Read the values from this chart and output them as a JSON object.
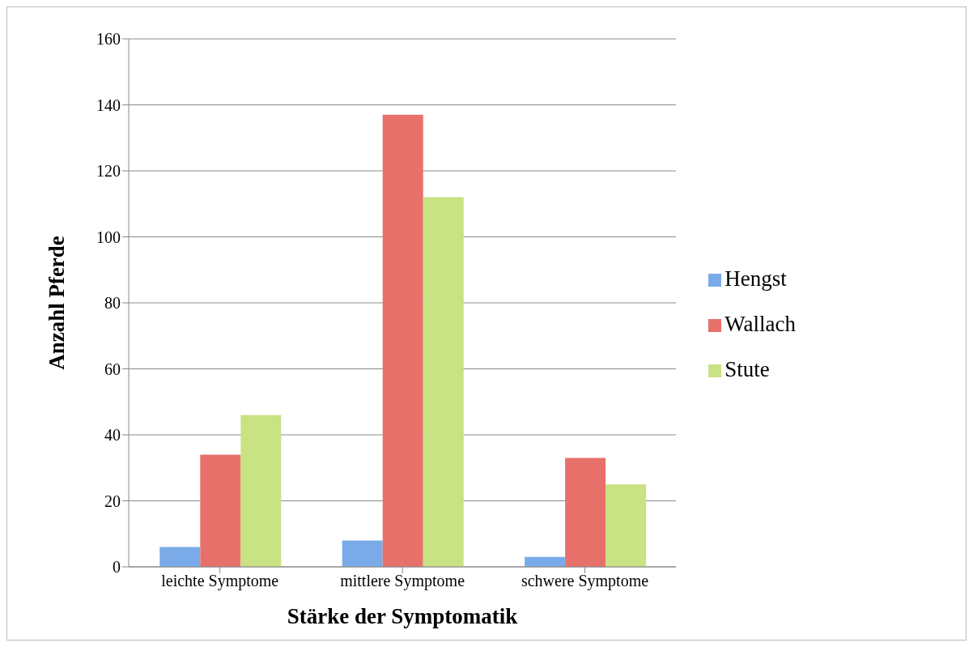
{
  "chart_data": {
    "type": "bar",
    "xlabel": "Stärke der Symptomatik",
    "ylabel": "Anzahl Pferde",
    "categories": [
      "leichte Symptome",
      "mittlere Symptome",
      "schwere Symptome"
    ],
    "series": [
      {
        "name": "Hengst",
        "color": "#7aabe8",
        "values": [
          6,
          8,
          3
        ]
      },
      {
        "name": "Wallach",
        "color": "#e8706a",
        "values": [
          34,
          137,
          33
        ]
      },
      {
        "name": "Stute",
        "color": "#c8e284",
        "values": [
          46,
          112,
          25
        ]
      }
    ],
    "ylim": [
      0,
      160
    ],
    "yticks": [
      0,
      20,
      40,
      60,
      80,
      100,
      120,
      140,
      160
    ],
    "grid": "y",
    "legend": "right"
  }
}
